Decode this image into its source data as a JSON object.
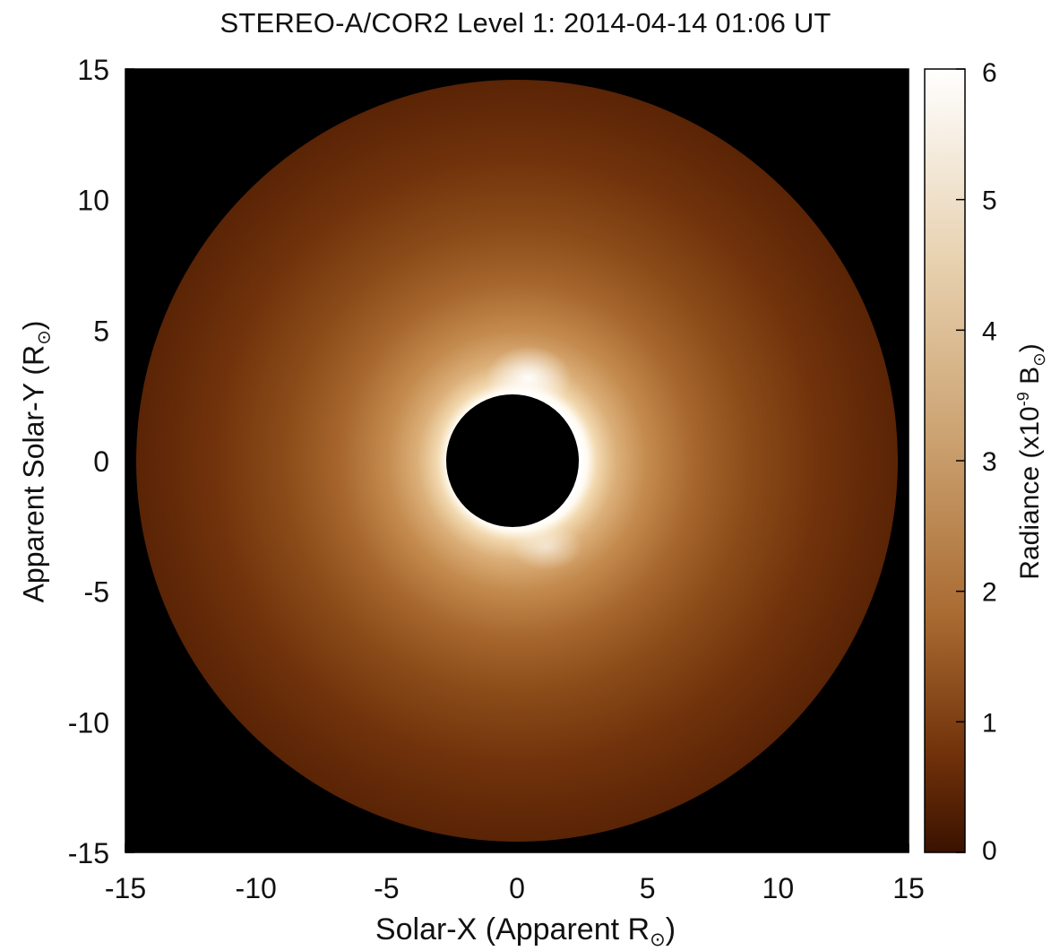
{
  "chart_data": {
    "type": "heatmap",
    "title": "STEREO-A/COR2 Level 1: 2014-04-14 01:06 UT",
    "xlabel": {
      "text": "Solar-X (Apparent R",
      "sub": "⊙",
      "tail": ")"
    },
    "ylabel": {
      "text": "Apparent Solar-Y (R",
      "sub": "⊙",
      "tail": ")"
    },
    "colorbar_label": {
      "text": "Radiance (x10",
      "sup": "-9",
      "mid": " B",
      "sub": "⊙",
      "tail": ")"
    },
    "xlim": [
      -15,
      15
    ],
    "ylim": [
      -15,
      15
    ],
    "xticks": [
      -15,
      -10,
      -5,
      0,
      5,
      10,
      15
    ],
    "yticks": [
      -15,
      -10,
      -5,
      0,
      5,
      10,
      15
    ],
    "colorbar_range": [
      0,
      6
    ],
    "colorbar_ticks": [
      0,
      1,
      2,
      3,
      4,
      5,
      6
    ],
    "field_of_view": {
      "occulter_radius": 2.6,
      "outer_radius": 15
    },
    "colors": {
      "background": "#000000",
      "low": "#3a1200",
      "mid": "#b77a3f",
      "high": "#ffffff"
    }
  }
}
